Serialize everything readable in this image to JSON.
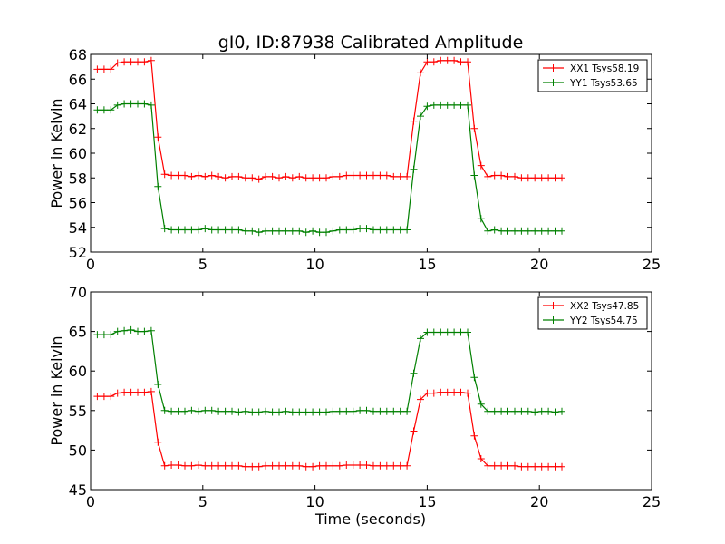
{
  "chart_data": [
    {
      "type": "line",
      "title": "gI0, ID:87938 Calibrated Amplitude",
      "xlabel": "",
      "ylabel": "Power in Kelvin",
      "xlim": [
        0,
        25
      ],
      "ylim": [
        52,
        68
      ],
      "xticks": [
        "0",
        "5",
        "10",
        "15",
        "20",
        "25"
      ],
      "yticks": [
        "52",
        "54",
        "56",
        "58",
        "60",
        "62",
        "64",
        "66",
        "68"
      ],
      "legend": "top-right",
      "grid": false,
      "x": [
        0.3,
        0.6,
        0.9,
        1.2,
        1.5,
        1.8,
        2.1,
        2.4,
        2.7,
        3.0,
        3.3,
        3.6,
        3.9,
        4.2,
        4.5,
        4.8,
        5.1,
        5.4,
        5.7,
        6.0,
        6.3,
        6.6,
        6.9,
        7.2,
        7.5,
        7.8,
        8.1,
        8.4,
        8.7,
        9.0,
        9.3,
        9.6,
        9.9,
        10.2,
        10.5,
        10.8,
        11.1,
        11.4,
        11.7,
        12.0,
        12.3,
        12.6,
        12.9,
        13.2,
        13.5,
        13.8,
        14.1,
        14.4,
        14.7,
        15.0,
        15.3,
        15.6,
        15.9,
        16.2,
        16.5,
        16.8,
        17.1,
        17.4,
        17.7,
        18.0,
        18.3,
        18.6,
        18.9,
        19.2,
        19.5,
        19.8,
        20.1,
        20.4,
        20.7,
        21.0
      ],
      "series": [
        {
          "name": "XX1 Tsys58.19",
          "color": "#ff0000",
          "values": [
            66.8,
            66.8,
            66.8,
            67.3,
            67.4,
            67.4,
            67.4,
            67.4,
            67.5,
            61.3,
            58.3,
            58.2,
            58.2,
            58.2,
            58.1,
            58.2,
            58.1,
            58.2,
            58.1,
            58.0,
            58.1,
            58.1,
            58.0,
            58.0,
            57.9,
            58.1,
            58.1,
            58.0,
            58.1,
            58.0,
            58.1,
            58.0,
            58.0,
            58.0,
            58.0,
            58.1,
            58.1,
            58.2,
            58.2,
            58.2,
            58.2,
            58.2,
            58.2,
            58.2,
            58.1,
            58.1,
            58.1,
            62.6,
            66.5,
            67.4,
            67.4,
            67.5,
            67.5,
            67.5,
            67.4,
            67.4,
            62.0,
            59.0,
            58.1,
            58.2,
            58.2,
            58.1,
            58.1,
            58.0,
            58.0,
            58.0,
            58.0,
            58.0,
            58.0,
            58.0
          ]
        },
        {
          "name": "YY1 Tsys53.65",
          "color": "#008000",
          "values": [
            63.5,
            63.5,
            63.5,
            63.9,
            64.0,
            64.0,
            64.0,
            64.0,
            63.9,
            57.3,
            53.9,
            53.8,
            53.8,
            53.8,
            53.8,
            53.8,
            53.9,
            53.8,
            53.8,
            53.8,
            53.8,
            53.8,
            53.7,
            53.7,
            53.6,
            53.7,
            53.7,
            53.7,
            53.7,
            53.7,
            53.7,
            53.6,
            53.7,
            53.6,
            53.6,
            53.7,
            53.8,
            53.8,
            53.8,
            53.9,
            53.9,
            53.8,
            53.8,
            53.8,
            53.8,
            53.8,
            53.8,
            58.7,
            63.0,
            63.8,
            63.9,
            63.9,
            63.9,
            63.9,
            63.9,
            63.9,
            58.2,
            54.7,
            53.7,
            53.8,
            53.7,
            53.7,
            53.7,
            53.7,
            53.7,
            53.7,
            53.7,
            53.7,
            53.7,
            53.7
          ]
        }
      ]
    },
    {
      "type": "line",
      "title": "",
      "xlabel": "Time (seconds)",
      "ylabel": "Power in Kelvin",
      "xlim": [
        0,
        25
      ],
      "ylim": [
        45,
        70
      ],
      "xticks": [
        "0",
        "5",
        "10",
        "15",
        "20",
        "25"
      ],
      "yticks": [
        "45",
        "50",
        "55",
        "60",
        "65",
        "70"
      ],
      "legend": "top-right",
      "grid": false,
      "x": [
        0.3,
        0.6,
        0.9,
        1.2,
        1.5,
        1.8,
        2.1,
        2.4,
        2.7,
        3.0,
        3.3,
        3.6,
        3.9,
        4.2,
        4.5,
        4.8,
        5.1,
        5.4,
        5.7,
        6.0,
        6.3,
        6.6,
        6.9,
        7.2,
        7.5,
        7.8,
        8.1,
        8.4,
        8.7,
        9.0,
        9.3,
        9.6,
        9.9,
        10.2,
        10.5,
        10.8,
        11.1,
        11.4,
        11.7,
        12.0,
        12.3,
        12.6,
        12.9,
        13.2,
        13.5,
        13.8,
        14.1,
        14.4,
        14.7,
        15.0,
        15.3,
        15.6,
        15.9,
        16.2,
        16.5,
        16.8,
        17.1,
        17.4,
        17.7,
        18.0,
        18.3,
        18.6,
        18.9,
        19.2,
        19.5,
        19.8,
        20.1,
        20.4,
        20.7,
        21.0
      ],
      "series": [
        {
          "name": "XX2 Tsys47.85",
          "color": "#ff0000",
          "values": [
            56.8,
            56.8,
            56.8,
            57.2,
            57.3,
            57.3,
            57.3,
            57.3,
            57.4,
            51.0,
            48.0,
            48.1,
            48.1,
            48.0,
            48.0,
            48.1,
            48.0,
            48.0,
            48.0,
            48.0,
            48.0,
            48.0,
            47.9,
            47.9,
            47.9,
            48.0,
            48.0,
            48.0,
            48.0,
            48.0,
            48.0,
            47.9,
            47.9,
            48.0,
            48.0,
            48.0,
            48.0,
            48.1,
            48.1,
            48.1,
            48.1,
            48.0,
            48.0,
            48.0,
            48.0,
            48.0,
            48.0,
            52.4,
            56.4,
            57.2,
            57.2,
            57.3,
            57.3,
            57.3,
            57.3,
            57.2,
            51.8,
            48.9,
            48.0,
            48.0,
            48.0,
            48.0,
            48.0,
            47.9,
            47.9,
            47.9,
            47.9,
            47.9,
            47.9,
            47.9
          ]
        },
        {
          "name": "YY2 Tsys54.75",
          "color": "#008000",
          "values": [
            64.6,
            64.6,
            64.6,
            65.0,
            65.1,
            65.2,
            65.0,
            65.0,
            65.1,
            58.3,
            55.0,
            54.9,
            54.9,
            54.9,
            55.0,
            54.9,
            55.0,
            55.0,
            54.9,
            54.9,
            54.9,
            54.8,
            54.9,
            54.8,
            54.8,
            54.9,
            54.8,
            54.8,
            54.9,
            54.8,
            54.8,
            54.8,
            54.8,
            54.8,
            54.8,
            54.9,
            54.9,
            54.9,
            54.9,
            55.0,
            55.0,
            54.9,
            54.9,
            54.9,
            54.9,
            54.9,
            54.9,
            59.7,
            64.1,
            64.9,
            64.9,
            64.9,
            64.9,
            64.9,
            64.9,
            64.9,
            59.2,
            55.8,
            54.9,
            54.9,
            54.9,
            54.9,
            54.9,
            54.9,
            54.9,
            54.8,
            54.9,
            54.9,
            54.8,
            54.9
          ]
        }
      ]
    }
  ]
}
